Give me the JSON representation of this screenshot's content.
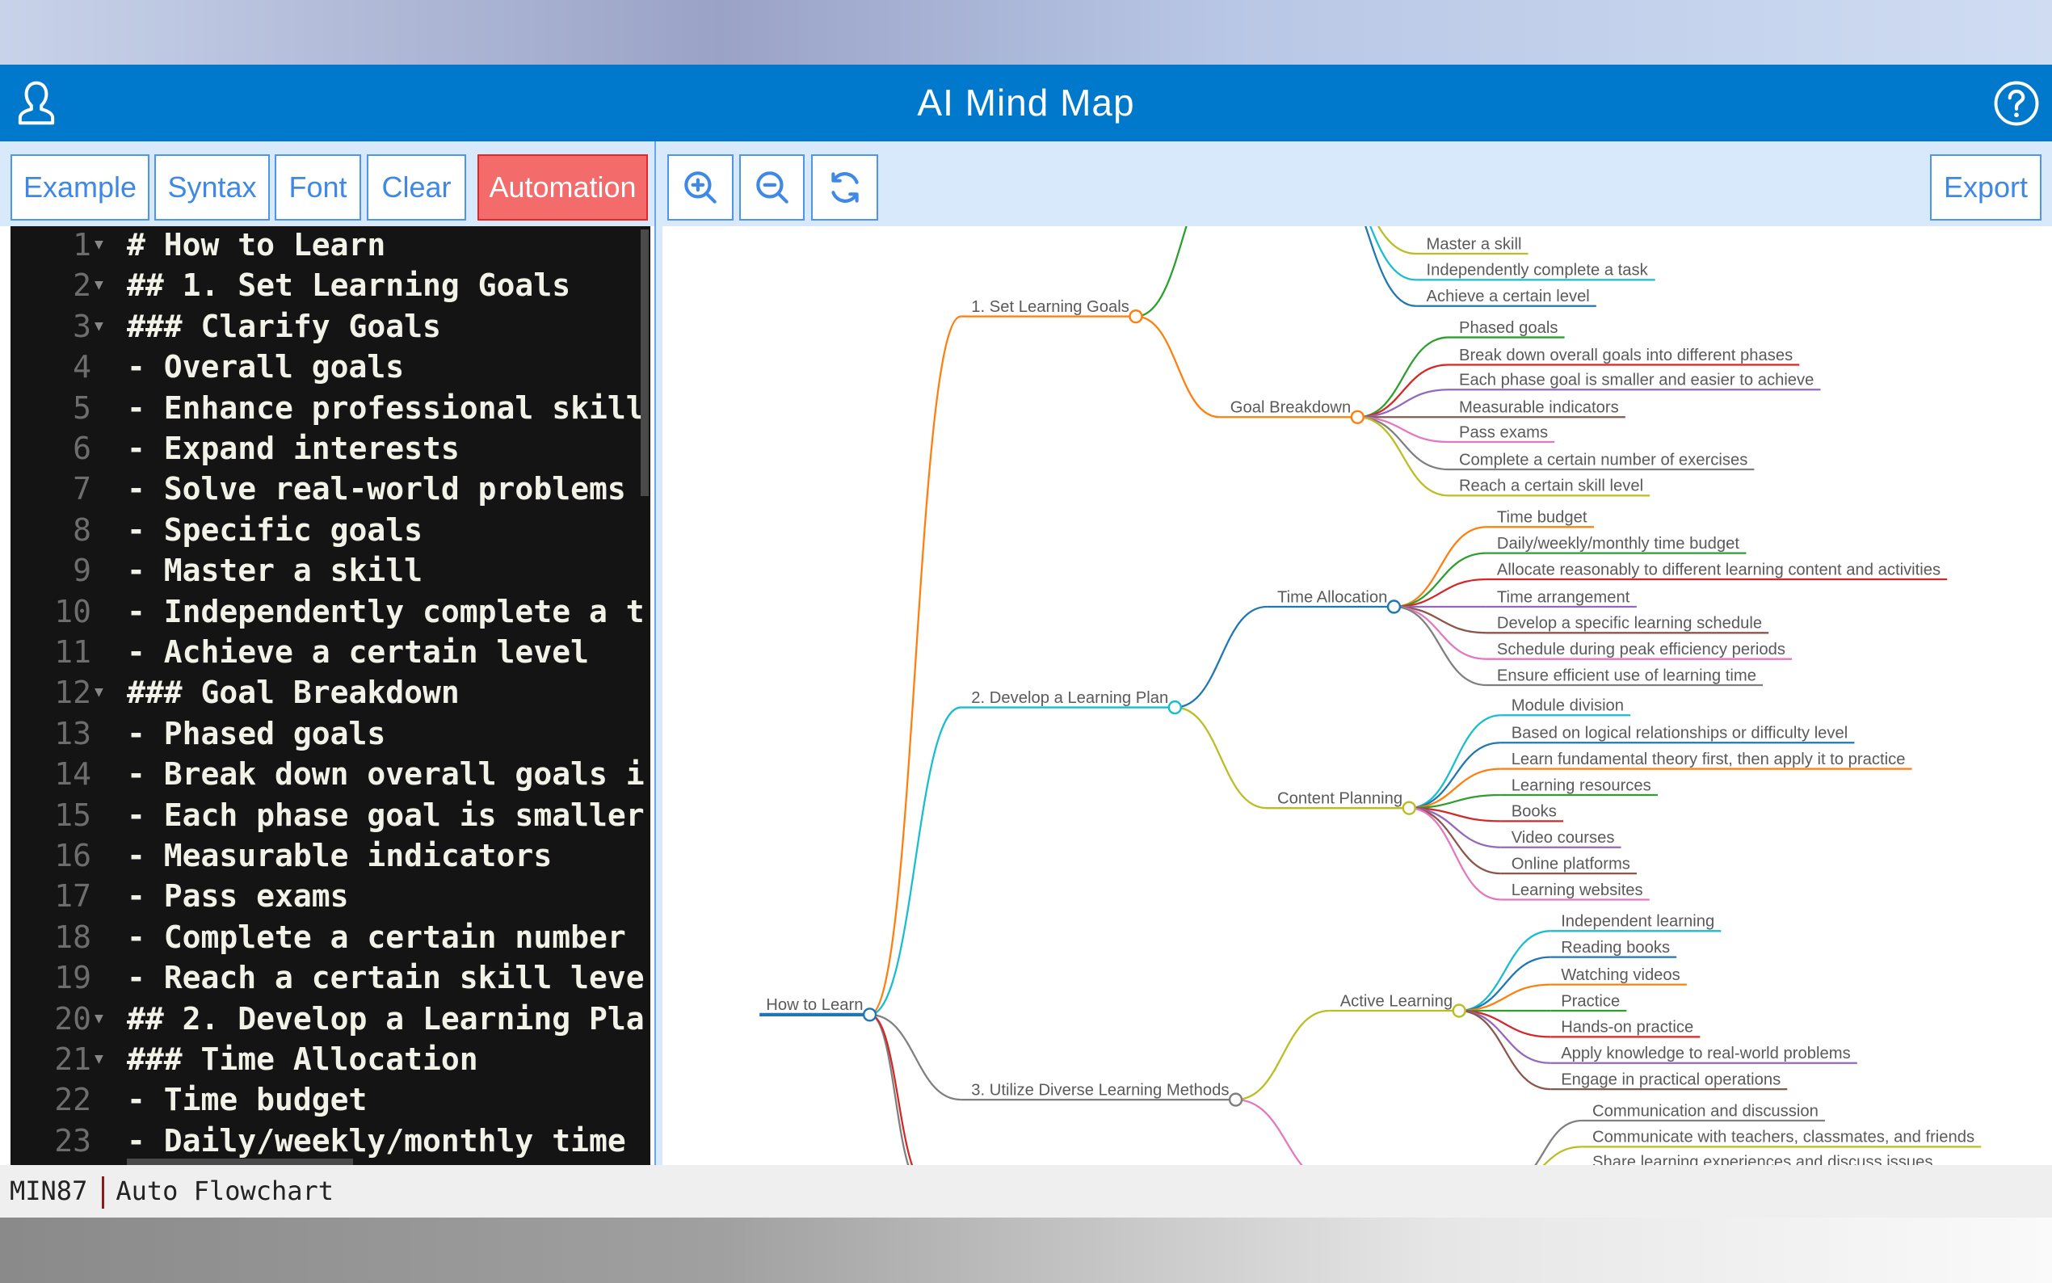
{
  "app": {
    "title": "AI Mind Map",
    "user_icon": "user-icon",
    "help_icon": "help-icon",
    "accent": "#0078cc"
  },
  "toolbar": {
    "example": "Example",
    "syntax": "Syntax",
    "font": "Font",
    "clear": "Clear",
    "automation": "Automation",
    "zoom_in_icon": "zoom-in-icon",
    "zoom_out_icon": "zoom-out-icon",
    "refresh_icon": "refresh-icon",
    "export": "Export",
    "automation_color": "#f36b6b"
  },
  "editor": {
    "lines": [
      {
        "n": "1",
        "fold": true,
        "text": "# How to Learn"
      },
      {
        "n": "2",
        "fold": true,
        "text": "## 1. Set Learning Goals"
      },
      {
        "n": "3",
        "fold": true,
        "text": "### Clarify Goals"
      },
      {
        "n": "4",
        "fold": false,
        "text": "- Overall goals"
      },
      {
        "n": "5",
        "fold": false,
        "text": "- Enhance professional skill"
      },
      {
        "n": "6",
        "fold": false,
        "text": "- Expand interests"
      },
      {
        "n": "7",
        "fold": false,
        "text": "- Solve real-world problems"
      },
      {
        "n": "8",
        "fold": false,
        "text": "- Specific goals"
      },
      {
        "n": "9",
        "fold": false,
        "text": "- Master a skill"
      },
      {
        "n": "10",
        "fold": false,
        "text": "- Independently complete a t"
      },
      {
        "n": "11",
        "fold": false,
        "text": "- Achieve a certain level"
      },
      {
        "n": "12",
        "fold": true,
        "text": "### Goal Breakdown"
      },
      {
        "n": "13",
        "fold": false,
        "text": "- Phased goals"
      },
      {
        "n": "14",
        "fold": false,
        "text": "- Break down overall goals i"
      },
      {
        "n": "15",
        "fold": false,
        "text": "- Each phase goal is smaller"
      },
      {
        "n": "16",
        "fold": false,
        "text": "- Measurable indicators"
      },
      {
        "n": "17",
        "fold": false,
        "text": "- Pass exams"
      },
      {
        "n": "18",
        "fold": false,
        "text": "- Complete a certain number"
      },
      {
        "n": "19",
        "fold": false,
        "text": "- Reach a certain skill leve"
      },
      {
        "n": "20",
        "fold": true,
        "text": "## 2. Develop a Learning Pla"
      },
      {
        "n": "21",
        "fold": true,
        "text": "### Time Allocation"
      },
      {
        "n": "22",
        "fold": false,
        "text": "- Time budget"
      },
      {
        "n": "23",
        "fold": false,
        "text": "- Daily/weekly/monthly time"
      }
    ]
  },
  "status": {
    "left": "MIN87",
    "right": "Auto Flowchart"
  },
  "mindmap": {
    "root": {
      "label": "How to Learn",
      "color": "#1f77b4",
      "children": [
        {
          "label": "1. Set Learning Goals",
          "color": "#ff7f0e",
          "children": [
            {
              "label": "",
              "color": "#2ca02c",
              "children": [
                {
                  "label": "Master a skill",
                  "color": "#bcbd22"
                },
                {
                  "label": "Independently complete a task",
                  "color": "#17becf"
                },
                {
                  "label": "Achieve a certain level",
                  "color": "#1f77b4"
                }
              ]
            },
            {
              "label": "Goal Breakdown",
              "color": "#ff7f0e",
              "children": [
                {
                  "label": "Phased goals",
                  "color": "#2ca02c"
                },
                {
                  "label": "Break down overall goals into different phases",
                  "color": "#d62728"
                },
                {
                  "label": "Each phase goal is smaller and easier to achieve",
                  "color": "#9467bd"
                },
                {
                  "label": "Measurable indicators",
                  "color": "#8c564b"
                },
                {
                  "label": "Pass exams",
                  "color": "#e377c2"
                },
                {
                  "label": "Complete a certain number of exercises",
                  "color": "#7f7f7f"
                },
                {
                  "label": "Reach a certain skill level",
                  "color": "#bcbd22"
                }
              ]
            }
          ]
        },
        {
          "label": "2. Develop a Learning Plan",
          "color": "#17becf",
          "children": [
            {
              "label": "Time Allocation",
              "color": "#1f77b4",
              "children": [
                {
                  "label": "Time budget",
                  "color": "#ff7f0e"
                },
                {
                  "label": "Daily/weekly/monthly time budget",
                  "color": "#2ca02c"
                },
                {
                  "label": "Allocate reasonably to different learning content and activities",
                  "color": "#d62728"
                },
                {
                  "label": "Time arrangement",
                  "color": "#9467bd"
                },
                {
                  "label": "Develop a specific learning schedule",
                  "color": "#8c564b"
                },
                {
                  "label": "Schedule during peak efficiency periods",
                  "color": "#e377c2"
                },
                {
                  "label": "Ensure efficient use of learning time",
                  "color": "#7f7f7f"
                }
              ]
            },
            {
              "label": "Content Planning",
              "color": "#bcbd22",
              "children": [
                {
                  "label": "Module division",
                  "color": "#17becf"
                },
                {
                  "label": "Based on logical relationships or difficulty level",
                  "color": "#1f77b4"
                },
                {
                  "label": "Learn fundamental theory first, then apply it to practice",
                  "color": "#ff7f0e"
                },
                {
                  "label": "Learning resources",
                  "color": "#2ca02c"
                },
                {
                  "label": "Books",
                  "color": "#d62728"
                },
                {
                  "label": "Video courses",
                  "color": "#9467bd"
                },
                {
                  "label": "Online platforms",
                  "color": "#8c564b"
                },
                {
                  "label": "Learning websites",
                  "color": "#e377c2"
                }
              ]
            }
          ]
        },
        {
          "label": "3. Utilize Diverse Learning Methods",
          "color": "#7f7f7f",
          "children": [
            {
              "label": "Active Learning",
              "color": "#bcbd22",
              "children": [
                {
                  "label": "Independent learning",
                  "color": "#17becf"
                },
                {
                  "label": "Reading books",
                  "color": "#1f77b4"
                },
                {
                  "label": "Watching videos",
                  "color": "#ff7f0e"
                },
                {
                  "label": "Practice",
                  "color": "#2ca02c"
                },
                {
                  "label": "Hands-on practice",
                  "color": "#d62728"
                },
                {
                  "label": "Apply knowledge to real-world problems",
                  "color": "#9467bd"
                },
                {
                  "label": "Engage in practical operations",
                  "color": "#8c564b"
                }
              ]
            },
            {
              "label": "",
              "color": "#e377c2",
              "children": [
                {
                  "label": "Communication and discussion",
                  "color": "#7f7f7f"
                },
                {
                  "label": "Communicate with teachers, classmates, and friends",
                  "color": "#bcbd22"
                },
                {
                  "label": "Share learning experiences and discuss issues",
                  "color": "#17becf"
                }
              ]
            }
          ]
        },
        {
          "label": "",
          "color": "#7f7f7f",
          "children": []
        },
        {
          "label": "",
          "color": "#d62728",
          "children": []
        }
      ]
    }
  }
}
